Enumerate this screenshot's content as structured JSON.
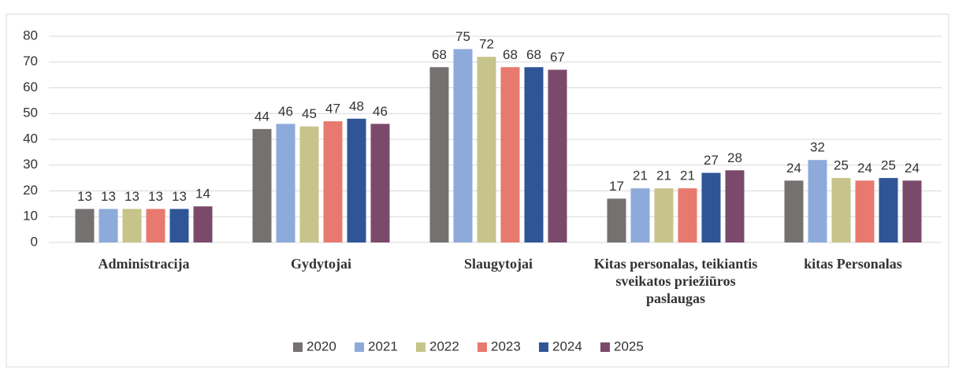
{
  "chart_data": {
    "type": "bar",
    "categories": [
      "Administracija",
      "Gydytojai",
      "Slaugytojai",
      "Kitas personalas, teikiantis sveikatos priežiūros paslaugas",
      "kitas Personalas"
    ],
    "series": [
      {
        "name": "2020",
        "color": "#767171",
        "values": [
          13,
          44,
          68,
          17,
          24
        ]
      },
      {
        "name": "2021",
        "color": "#8eaadb",
        "values": [
          13,
          46,
          75,
          21,
          32
        ]
      },
      {
        "name": "2022",
        "color": "#c6c48a",
        "values": [
          13,
          45,
          72,
          21,
          25
        ]
      },
      {
        "name": "2023",
        "color": "#e8796e",
        "values": [
          13,
          47,
          68,
          21,
          24
        ]
      },
      {
        "name": "2024",
        "color": "#2f5597",
        "values": [
          13,
          48,
          68,
          27,
          25
        ]
      },
      {
        "name": "2025",
        "color": "#7b4a6b",
        "values": [
          14,
          46,
          67,
          28,
          24
        ]
      }
    ],
    "ylim": [
      0,
      80
    ],
    "yticks": [
      0,
      10,
      20,
      30,
      40,
      50,
      60,
      70,
      80
    ],
    "grid": true,
    "legend": "bottom"
  }
}
